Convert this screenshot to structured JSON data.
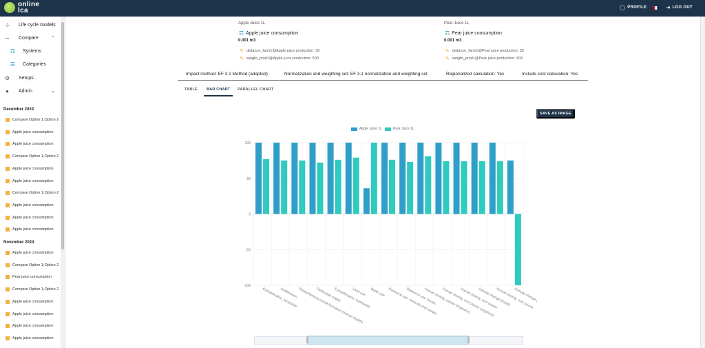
{
  "app": {
    "logo_line1": "online",
    "logo_line2": "lca"
  },
  "topbar": {
    "profile": "PROFILE",
    "logout": "LOG OUT"
  },
  "sidebar": {
    "nav": [
      {
        "label": "Life cycle models",
        "icon": "tree-icon"
      },
      {
        "label": "Compare",
        "icon": "compare-icon",
        "expanded": true
      },
      {
        "label": "Systems",
        "icon": "hierarchy-icon",
        "sub": true
      },
      {
        "label": "Categories",
        "icon": "list-icon",
        "sub": true
      },
      {
        "label": "Setups",
        "icon": "gear-icon"
      },
      {
        "label": "Admin",
        "icon": "admin-icon"
      }
    ],
    "sections": [
      {
        "title": "December 2024",
        "items": [
          "Compare Option 1,Option 2",
          "Apple juice consumption",
          "Apple juice consumption",
          "Compare Option 1,Option 2",
          "Apple juice consumption",
          "Apple juice consumption",
          "Compare Option 1,Option 2",
          "Apple juice consumption",
          "Apple juice consumption",
          "Apple juice consumption"
        ]
      },
      {
        "title": "November 2024",
        "items": [
          "Apple juice consumption",
          "Compare Option 1,Option 2",
          "Pear juice consumption",
          "Compare Option 1,Option 2",
          "Apple juice consumption",
          "Apple juice consumption",
          "Apple juice consumption",
          "Apple juice consumption"
        ]
      }
    ]
  },
  "compare": {
    "left": {
      "product": "Apple Juice 1L",
      "process": "Apple juice consumption",
      "amount": "0.001 m3",
      "params": [
        "distance_farm1@Apple juice production: 35",
        "weight_prod1@Apple juice production: 500"
      ]
    },
    "right": {
      "product": "Pear Juice 1L",
      "process": "Pear juice consumption",
      "amount": "0.001 m3",
      "params": [
        "distance_farm1@Pear juice production: 35",
        "weight_prod1@Pear juice production: 500"
      ]
    }
  },
  "settings": {
    "impact": "Impact method: EF 3.1 Method (adapted)",
    "normalization": "Normalization and weighting set: EF 3.1 normalization and weighting set",
    "regionalized": "Regionalized calculation: Yes",
    "cost": "Include cost calculation: Yes"
  },
  "tabs": [
    "TABLE",
    "BAR CHART",
    "PARALLEL CHART"
  ],
  "active_tab": "BAR CHART",
  "save_button": "SAVE AS IMAGE",
  "colors": {
    "apple": "#2e9fc9",
    "pear": "#2ecbbf",
    "nav": "#1d3349"
  },
  "chart_data": {
    "type": "bar",
    "ylim": [
      -100,
      100
    ],
    "yticks": [
      100,
      50,
      0,
      -50,
      -100
    ],
    "grid": true,
    "legend": "top-center",
    "categories": [
      "Eutrophication, terrestrial",
      "Acidification",
      "Photochemical ozone formation (human health)",
      "Particulate matter",
      "Eutrophication, freshwater",
      "Land use",
      "Water use",
      "Resource use, minerals and metals",
      "Resource use, fossils",
      "Human toxicity, cancer (organics)",
      "Human toxicity, non-cancer (organics)",
      "Human toxicity, non-cancer",
      "Climate change (fossil)",
      "Human toxicity, non-cancer",
      "Climate change (biogenic)"
    ],
    "series": [
      {
        "name": "Apple Juice 1L",
        "values": [
          100,
          100,
          100,
          100,
          100,
          100,
          36,
          100,
          100,
          100,
          100,
          100,
          100,
          100,
          75
        ]
      },
      {
        "name": "Pear Juice 1L",
        "values": [
          77,
          75,
          75,
          72,
          76,
          79,
          100,
          76,
          73,
          81,
          74,
          74,
          74,
          74,
          -100
        ]
      }
    ]
  }
}
